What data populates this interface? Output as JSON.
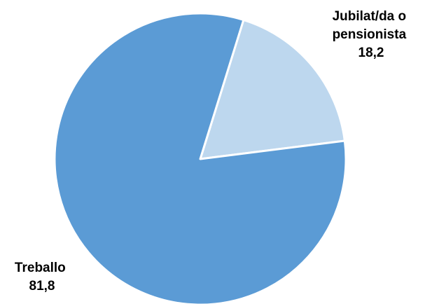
{
  "chart_data": {
    "type": "pie",
    "slices": [
      {
        "label_lines": [
          "Jubilat/da o",
          "pensionista"
        ],
        "value_text": "18,2",
        "value": 18.2,
        "color": "#bdd7ee"
      },
      {
        "label_lines": [
          "Treballo"
        ],
        "value_text": "81,8",
        "value": 81.8,
        "color": "#5b9bd5"
      }
    ],
    "start_angle_deg": 17.3,
    "slice_border_color": "#ffffff",
    "legend": "none"
  }
}
